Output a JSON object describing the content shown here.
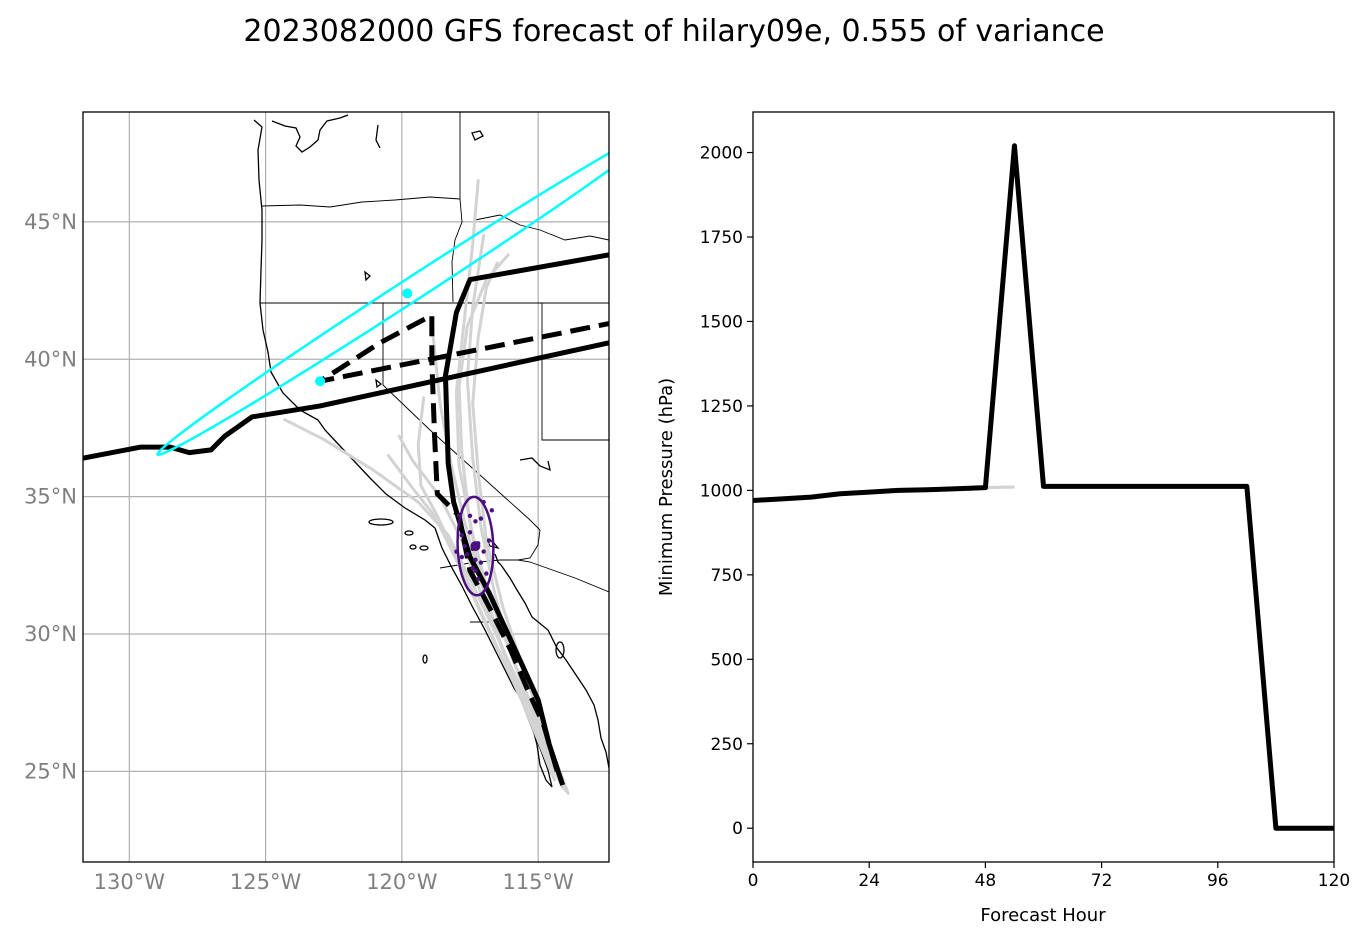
{
  "title": "2023082000 GFS forecast of hilary09e, 0.555 of variance",
  "colors": {
    "main_track": "#000000",
    "ensemble": "#d3d3d3",
    "ellipse_cyan": "#00ffff",
    "ellipse_purple": "#4b0f7f",
    "grid": "#b0b0b0",
    "map_tick": "#808080"
  },
  "chart_data": [
    {
      "type": "line",
      "subtype": "track-map",
      "xlim": [
        -131.7,
        -112.4
      ],
      "ylim": [
        21.7,
        49.0
      ],
      "x_ticks": [
        -130,
        -125,
        -120,
        -115
      ],
      "x_tick_labels": [
        "130°W",
        "125°W",
        "120°W",
        "115°W"
      ],
      "y_ticks": [
        25,
        30,
        35,
        40,
        45
      ],
      "y_tick_labels": [
        "25°N",
        "30°N",
        "35°N",
        "40°N",
        "45°N"
      ],
      "grid": true,
      "series": [
        {
          "style": "solid-thick",
          "x": [
            -114.1,
            -114.6,
            -115.0,
            -115.6,
            -116.2,
            -116.8,
            -117.5,
            -118.1,
            -118.3,
            -118.4,
            -118.0,
            -117.5,
            -112.4
          ],
          "y": [
            24.5,
            26.0,
            27.6,
            28.9,
            30.2,
            31.5,
            32.8,
            34.8,
            36.2,
            39.4,
            41.7,
            42.9,
            43.8
          ]
        },
        {
          "style": "solid-thick",
          "x": [
            -131.7,
            -129.6,
            -128.5,
            -127.8,
            -127.0,
            -126.5,
            -125.5,
            -123.0,
            -112.4
          ],
          "y": [
            36.4,
            36.8,
            36.8,
            36.6,
            36.7,
            37.2,
            37.9,
            38.3,
            40.6
          ]
        },
        {
          "style": "dashed-thick",
          "x": [
            -114.3,
            -114.8,
            -115.4,
            -116.0,
            -116.7,
            -117.5,
            -117.9,
            -118.7,
            -118.8,
            -118.9,
            -118.9,
            -120.8,
            -123.0,
            -112.4
          ],
          "y": [
            25.0,
            26.7,
            28.0,
            29.4,
            30.8,
            32.3,
            34.3,
            35.1,
            37.2,
            39.9,
            41.6,
            40.6,
            39.2,
            41.3
          ]
        }
      ],
      "ensemble_tracks": [
        {
          "x": [
            -114.0,
            -114.9,
            -115.9,
            -116.8,
            -117.4,
            -117.9,
            -118.0,
            -117.7,
            -117.4,
            -117.2
          ],
          "y": [
            24.3,
            26.6,
            29.0,
            31.4,
            33.6,
            36.1,
            38.8,
            41.5,
            44.2,
            46.5
          ]
        },
        {
          "x": [
            -114.2,
            -115.1,
            -116.0,
            -116.6,
            -117.1,
            -117.4,
            -117.6,
            -117.4,
            -117.0
          ],
          "y": [
            24.6,
            26.9,
            29.3,
            31.5,
            33.9,
            36.4,
            39.3,
            41.9,
            44.5
          ]
        },
        {
          "x": [
            -113.9,
            -114.7,
            -115.5,
            -116.3,
            -116.9,
            -117.2,
            -117.4,
            -117.2,
            -116.9,
            -116.5
          ],
          "y": [
            24.2,
            26.3,
            28.6,
            31.0,
            33.4,
            35.9,
            38.4,
            40.8,
            42.6,
            43.5
          ]
        },
        {
          "x": [
            -114.3,
            -115.3,
            -116.3,
            -117.0,
            -117.5,
            -117.8,
            -117.9,
            -117.6,
            -116.9,
            -116.1
          ],
          "y": [
            24.8,
            27.0,
            29.4,
            31.7,
            34.0,
            36.6,
            39.0,
            41.2,
            42.9,
            43.8
          ]
        },
        {
          "x": [
            -114.5,
            -115.4,
            -116.4,
            -117.1,
            -117.7,
            -118.2,
            -118.6,
            -118.9
          ],
          "y": [
            24.9,
            27.2,
            29.7,
            31.9,
            34.1,
            36.2,
            38.4,
            41.3
          ]
        },
        {
          "x": [
            -114.1,
            -115.0,
            -116.1,
            -117.0,
            -117.8,
            -118.6,
            -119.6,
            -120.1
          ],
          "y": [
            24.4,
            26.8,
            29.0,
            31.2,
            33.4,
            35.0,
            36.3,
            37.2
          ]
        },
        {
          "x": [
            -114.4,
            -115.6,
            -116.9,
            -117.8,
            -118.8,
            -119.6,
            -120.5
          ],
          "y": [
            24.7,
            27.6,
            30.3,
            32.3,
            34.3,
            35.3,
            36.5
          ]
        },
        {
          "x": [
            -114.2,
            -115.3,
            -116.5,
            -117.5,
            -118.3,
            -119.4,
            -121.1,
            -122.9,
            -124.3
          ],
          "y": [
            24.6,
            27.3,
            29.9,
            32.0,
            33.6,
            34.8,
            36.0,
            37.1,
            37.8
          ]
        },
        {
          "x": [
            -114.6,
            -115.7,
            -117.0,
            -117.9,
            -118.7,
            -119.3,
            -119.4,
            -119.2
          ],
          "y": [
            25.2,
            27.8,
            30.6,
            32.6,
            34.3,
            35.4,
            36.9,
            38.6
          ]
        }
      ],
      "ellipses": [
        {
          "color": "cyan",
          "center": [
            -119.7,
            42.5
          ],
          "semi_major": 11.0,
          "semi_minor": 0.42,
          "angle_deg": 33
        },
        {
          "color": "purple",
          "center": [
            -117.3,
            33.2
          ],
          "semi_major": 1.8,
          "semi_minor": 0.65,
          "angle_deg": 92
        }
      ],
      "cyan_points": [
        {
          "x": -119.8,
          "y": 42.4
        },
        {
          "x": -123.0,
          "y": 39.2
        }
      ],
      "purple_center": {
        "x": -117.3,
        "y": 33.2
      },
      "purple_points": [
        {
          "x": -117.0,
          "y": 34.8
        },
        {
          "x": -117.5,
          "y": 34.3
        },
        {
          "x": -117.3,
          "y": 34.1
        },
        {
          "x": -117.1,
          "y": 34.2
        },
        {
          "x": -117.9,
          "y": 34.3
        },
        {
          "x": -116.7,
          "y": 34.5
        },
        {
          "x": -117.8,
          "y": 33.6
        },
        {
          "x": -117.5,
          "y": 33.7
        },
        {
          "x": -116.8,
          "y": 33.4
        },
        {
          "x": -117.2,
          "y": 33.3
        },
        {
          "x": -117.4,
          "y": 33.1
        },
        {
          "x": -117.0,
          "y": 33.0
        },
        {
          "x": -117.6,
          "y": 32.9
        },
        {
          "x": -117.3,
          "y": 32.7
        },
        {
          "x": -117.1,
          "y": 32.6
        },
        {
          "x": -117.4,
          "y": 32.4
        },
        {
          "x": -117.8,
          "y": 32.8
        },
        {
          "x": -117.2,
          "y": 32.0
        },
        {
          "x": -116.9,
          "y": 32.2
        },
        {
          "x": -117.7,
          "y": 33.2
        },
        {
          "x": -118.0,
          "y": 33.0
        },
        {
          "x": -117.3,
          "y": 32.3
        }
      ]
    },
    {
      "type": "line",
      "xlabel": "Forecast Hour",
      "ylabel": "Minimum Pressure (hPa)",
      "xlim": [
        0,
        120
      ],
      "ylim": [
        -100,
        2120
      ],
      "x_ticks": [
        0,
        24,
        48,
        72,
        96,
        120
      ],
      "y_ticks": [
        0,
        250,
        500,
        750,
        1000,
        1250,
        1500,
        1750,
        2000
      ],
      "grid": false,
      "series": [
        {
          "style": "solid-thick",
          "x": [
            0,
            6,
            12,
            18,
            24,
            30,
            36,
            42,
            48,
            54,
            60,
            66,
            72,
            78,
            84,
            90,
            96,
            102,
            108,
            114,
            120
          ],
          "y": [
            970,
            975,
            980,
            990,
            995,
            1000,
            1002,
            1005,
            1008,
            2020,
            1012,
            1012,
            1012,
            1012,
            1012,
            1012,
            1012,
            1012,
            0,
            0,
            0
          ]
        }
      ],
      "ensemble_series": [
        {
          "x": [
            0,
            6,
            12,
            18,
            24,
            30,
            36,
            42,
            48,
            54
          ],
          "y": [
            968,
            973,
            979,
            988,
            993,
            998,
            1001,
            1004,
            1007,
            1009
          ]
        },
        {
          "x": [
            0,
            6,
            12,
            18,
            24,
            30,
            36,
            42,
            48,
            54
          ],
          "y": [
            972,
            977,
            982,
            991,
            996,
            1000,
            1003,
            1006,
            1009,
            1011
          ]
        }
      ]
    }
  ]
}
